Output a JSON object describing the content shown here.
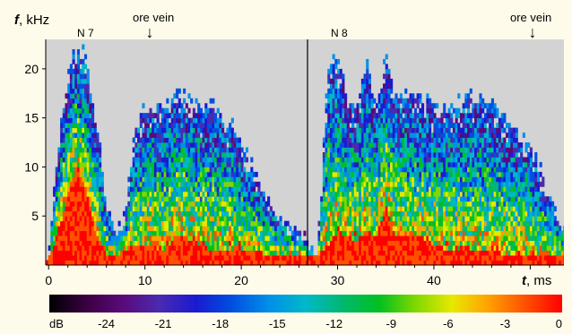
{
  "y_axis": {
    "label_bold": "f",
    "label_rest": ", kHz"
  },
  "x_axis": {
    "label_italic": "t",
    "label_rest": ", ms"
  },
  "annotations": {
    "left_title": "N 7",
    "right_title": "N 8",
    "ore_vein": "ore vein"
  },
  "colorbar": {
    "label": "dB",
    "ticks": [
      "-24",
      "-21",
      "-18",
      "-15",
      "-12",
      "-9",
      "-6",
      "-3",
      "0"
    ],
    "stops": [
      "#000000",
      "#3a0040",
      "#5a0a7a",
      "#4a2ab0",
      "#1a1ad0",
      "#0050e0",
      "#0090e8",
      "#00b8c8",
      "#00b870",
      "#00c020",
      "#80d800",
      "#e8e800",
      "#ffa000",
      "#ff5000",
      "#ff0000"
    ]
  },
  "colors": {
    "background": "#fffbea",
    "plot_background": "#d3d3d3"
  },
  "chart_data": {
    "type": "heatmap",
    "title": "",
    "panels": [
      "N 7",
      "N 8"
    ],
    "xlabel": "t, ms",
    "ylabel": "f, kHz",
    "xlim": [
      -0.3,
      53.5
    ],
    "ylim": [
      0,
      23
    ],
    "x_ticks": [
      0,
      10,
      20,
      30,
      40
    ],
    "y_ticks": [
      5,
      10,
      15,
      20
    ],
    "panel_boundary_ms": 27,
    "ore_vein_ms": [
      11,
      51
    ],
    "colorbar_range_db": [
      -27,
      0
    ],
    "intensity_profile": {
      "t_ms": [
        0,
        1.5,
        2.5,
        3,
        3.8,
        5,
        6,
        7,
        8,
        9,
        10,
        12,
        13.5,
        15,
        17,
        19,
        21,
        23,
        25,
        27,
        28,
        29,
        30,
        31,
        32,
        33,
        34,
        35,
        36,
        37,
        38,
        40,
        42,
        44,
        46,
        48,
        50,
        52,
        53
      ],
      "top_kHz": [
        1,
        16.5,
        21,
        21.5,
        21.5,
        14,
        6,
        3,
        5,
        14,
        16,
        16,
        17.5,
        16,
        16,
        14,
        10,
        6,
        4,
        2,
        2,
        20,
        21,
        17,
        16,
        21,
        16,
        21,
        17,
        17,
        17,
        16,
        16,
        17,
        16,
        14,
        12,
        7,
        4
      ],
      "hot_kHz": [
        0.5,
        5,
        9,
        10,
        8,
        3,
        1,
        1,
        1.5,
        2,
        2,
        1.5,
        3,
        2.5,
        1.5,
        1.5,
        1.5,
        1,
        1,
        1,
        1,
        2,
        3.5,
        3,
        2.5,
        3.5,
        3,
        6,
        3,
        3,
        3,
        2,
        1.5,
        1.5,
        1.5,
        1,
        1,
        1,
        1
      ]
    }
  }
}
